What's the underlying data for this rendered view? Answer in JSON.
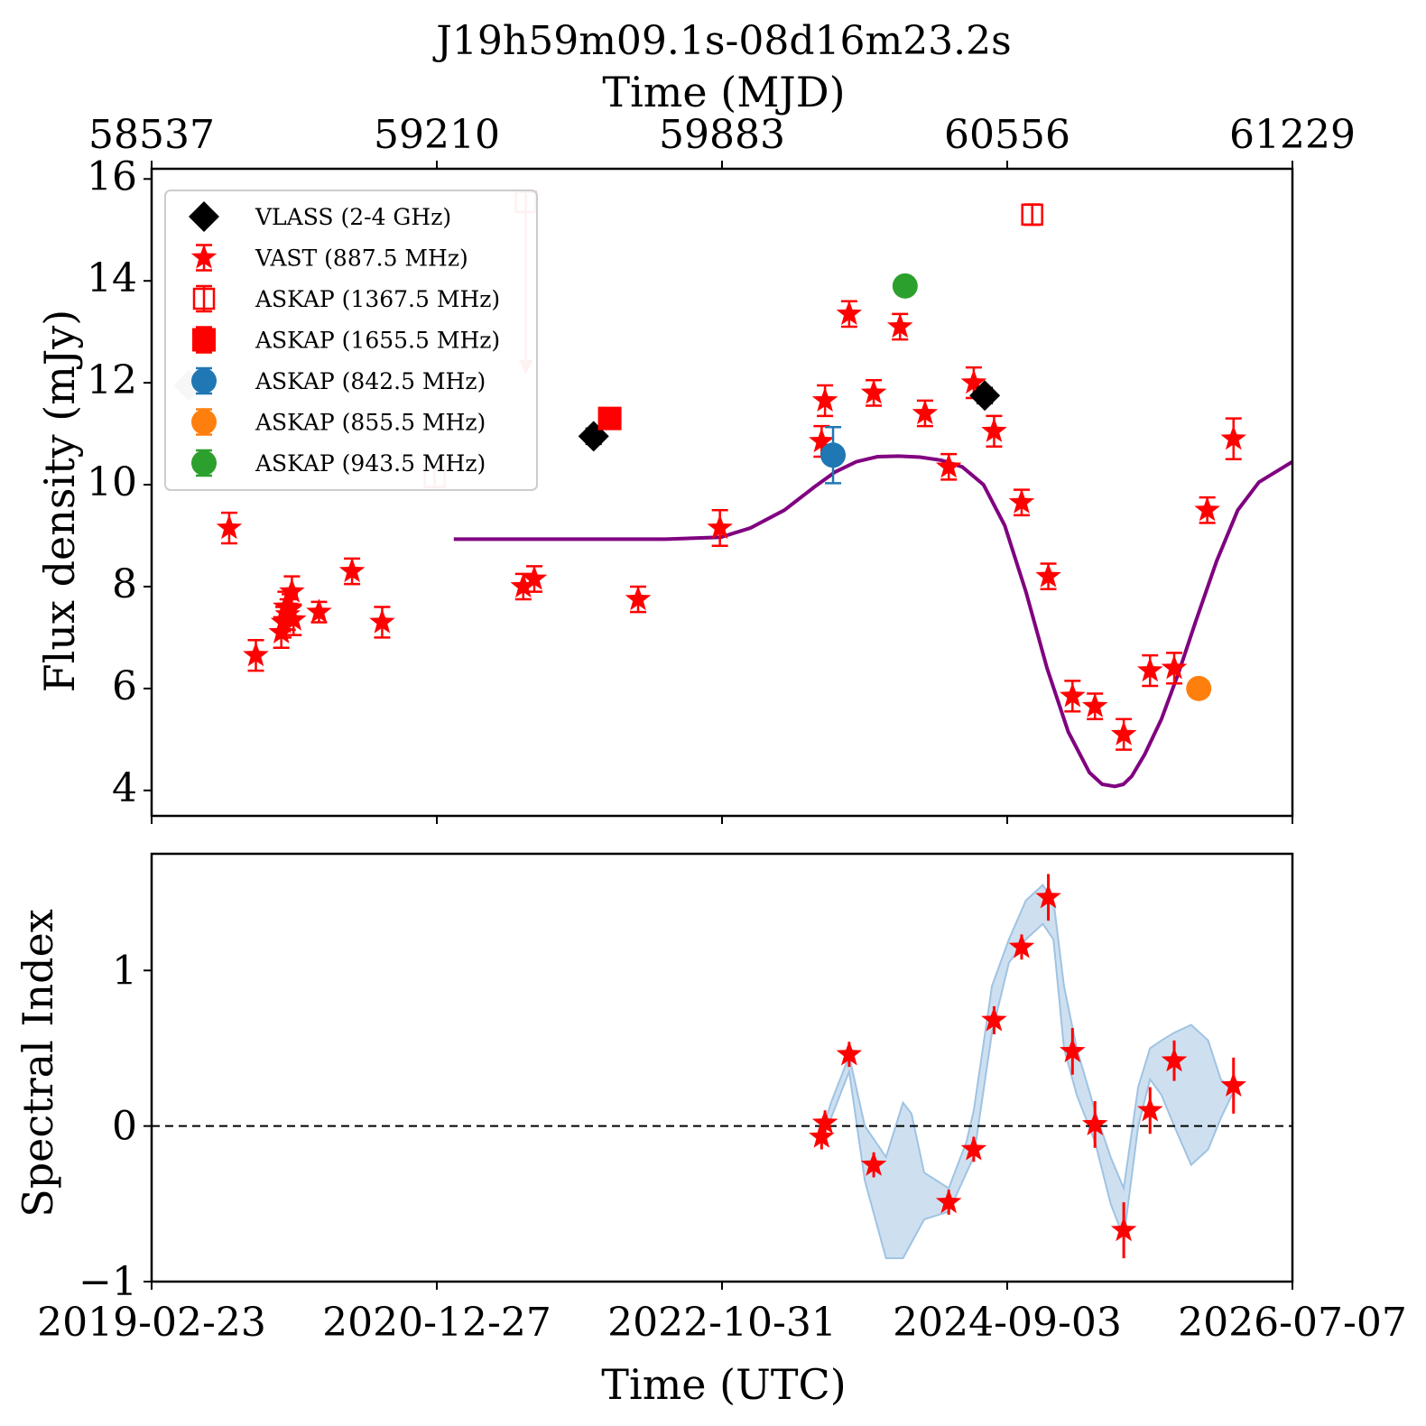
{
  "title": "J19h59m09.1s-08d16m23.2s",
  "colors": {
    "vast": "#ff0000",
    "vlass": "#000000",
    "vlass_faded": "#c8c8c8",
    "askap_842": "#1f77b4",
    "askap_855": "#ff7f0e",
    "askap_943": "#2ca02c",
    "model": "#800080",
    "band_fill": "#b9d3ea"
  },
  "chart_data": [
    {
      "type": "scatter",
      "name": "top-panel",
      "x_top_label": "Time (MJD)",
      "ylabel": "Flux density (mJy)",
      "xlim": [
        58537,
        61229
      ],
      "ylim": [
        3.5,
        16.2
      ],
      "x_top_ticks": [
        "58537",
        "59210",
        "59883",
        "60556",
        "61229"
      ],
      "y_ticks": [
        "4",
        "6",
        "8",
        "10",
        "12",
        "14",
        "16"
      ],
      "y_tick_values": [
        4,
        6,
        8,
        10,
        12,
        14,
        16
      ],
      "legend": [
        {
          "label": "VLASS (2-4 GHz)",
          "marker": "diamond",
          "color": "#000000"
        },
        {
          "label": "VAST (887.5 MHz)",
          "marker": "star",
          "color": "#ff0000"
        },
        {
          "label": "ASKAP (1367.5 MHz)",
          "marker": "open-square",
          "color": "#ff0000"
        },
        {
          "label": "ASKAP (1655.5 MHz)",
          "marker": "square",
          "color": "#ff0000"
        },
        {
          "label": "ASKAP (842.5 MHz)",
          "marker": "circle",
          "color": "#1f77b4"
        },
        {
          "label": "ASKAP (855.5 MHz)",
          "marker": "circle",
          "color": "#ff7f0e"
        },
        {
          "label": "ASKAP (943.5 MHz)",
          "marker": "circle",
          "color": "#2ca02c"
        }
      ],
      "legend_position": "upper-left",
      "series": [
        {
          "name": "VAST (887.5 MHz)",
          "marker": "star",
          "color": "#ff0000",
          "points": [
            [
              58720,
              9.15,
              0.3
            ],
            [
              58783,
              6.65,
              0.3
            ],
            [
              58843,
              7.1,
              0.3
            ],
            [
              58848,
              7.3,
              0.3
            ],
            [
              58853,
              7.6,
              0.3
            ],
            [
              58858,
              7.45,
              0.3
            ],
            [
              58863,
              7.55,
              0.3
            ],
            [
              58868,
              7.9,
              0.3
            ],
            [
              58872,
              7.35,
              0.3
            ],
            [
              58932,
              7.5,
              0.2
            ],
            [
              59010,
              8.3,
              0.25
            ],
            [
              59081,
              7.3,
              0.3
            ],
            [
              59414,
              8.0,
              0.25
            ],
            [
              59440,
              8.15,
              0.25
            ],
            [
              59685,
              7.75,
              0.25
            ],
            [
              59878,
              9.15,
              0.35
            ],
            [
              60118,
              10.85,
              0.3
            ],
            [
              60126,
              11.65,
              0.3
            ],
            [
              60183,
              13.35,
              0.25
            ],
            [
              60241,
              11.8,
              0.25
            ],
            [
              60303,
              13.1,
              0.25
            ],
            [
              60362,
              11.4,
              0.25
            ],
            [
              60418,
              10.35,
              0.25
            ],
            [
              60477,
              12.0,
              0.3
            ],
            [
              60525,
              11.05,
              0.3
            ],
            [
              60590,
              9.65,
              0.25
            ],
            [
              60653,
              8.2,
              0.25
            ],
            [
              60710,
              5.85,
              0.3
            ],
            [
              60763,
              5.65,
              0.25
            ],
            [
              60831,
              5.1,
              0.3
            ],
            [
              60893,
              6.35,
              0.3
            ],
            [
              60950,
              6.4,
              0.3
            ],
            [
              61028,
              9.5,
              0.25
            ],
            [
              61090,
              10.9,
              0.4
            ]
          ]
        },
        {
          "name": "VLASS (2-4 GHz)",
          "marker": "diamond",
          "color": "#000000",
          "points": [
            [
              59580,
              10.95,
              0.15
            ],
            [
              60503,
              11.75,
              0.15
            ]
          ]
        },
        {
          "name": "VLASS (2-4 GHz) faded",
          "marker": "diamond",
          "color": "#c8c8c8",
          "points": [
            [
              58625,
              11.95,
              0.15
            ]
          ]
        },
        {
          "name": "ASKAP (1367.5 MHz)",
          "marker": "open-square",
          "color": "#ff0000",
          "points": [
            [
              60615,
              15.3,
              0.2
            ]
          ]
        },
        {
          "name": "ASKAP (1367.5 MHz) faded",
          "marker": "open-square",
          "color": "#f7a8a8",
          "points": [
            [
              59205,
              10.15,
              0.2
            ],
            [
              59420,
              15.55,
              0.2
            ]
          ]
        },
        {
          "name": "ASKAP (1655.5 MHz)",
          "marker": "square",
          "color": "#ff0000",
          "points": [
            [
              59618,
              11.3,
              0.15
            ]
          ]
        },
        {
          "name": "ASKAP (842.5 MHz)",
          "marker": "circle",
          "color": "#1f77b4",
          "points": [
            [
              60145,
              10.58,
              0.55
            ]
          ]
        },
        {
          "name": "ASKAP (855.5 MHz)",
          "marker": "circle",
          "color": "#ff7f0e",
          "points": [
            [
              61008,
              6.0,
              0.12
            ]
          ]
        },
        {
          "name": "ASKAP (943.5 MHz)",
          "marker": "circle",
          "color": "#2ca02c",
          "points": [
            [
              60315,
              13.9,
              0.15
            ]
          ]
        }
      ],
      "upper_limit": {
        "x": 59420,
        "y_from": 15.55,
        "y_to": 12.2,
        "color": "#f7a8a8"
      },
      "model_curve": {
        "color": "#800080",
        "x": [
          59250,
          59500,
          59750,
          59880,
          59950,
          60030,
          60100,
          60150,
          60200,
          60250,
          60300,
          60350,
          60400,
          60450,
          60500,
          60550,
          60600,
          60650,
          60700,
          60750,
          60780,
          60810,
          60830,
          60850,
          60880,
          60920,
          60960,
          61000,
          61050,
          61100,
          61150,
          61229
        ],
        "y": [
          8.93,
          8.93,
          8.93,
          8.97,
          9.15,
          9.5,
          9.95,
          10.25,
          10.45,
          10.55,
          10.56,
          10.54,
          10.48,
          10.35,
          10.0,
          9.2,
          7.9,
          6.4,
          5.15,
          4.35,
          4.12,
          4.08,
          4.12,
          4.28,
          4.7,
          5.4,
          6.3,
          7.3,
          8.5,
          9.5,
          10.05,
          10.45
        ]
      }
    },
    {
      "type": "scatter",
      "name": "bottom-panel",
      "xlabel": "Time (UTC)",
      "ylabel": "Spectral Index",
      "xlim": [
        58537,
        61229
      ],
      "ylim": [
        -1.0,
        1.75
      ],
      "x_ticks": [
        "2019-02-23",
        "2020-12-27",
        "2022-10-31",
        "2024-09-03",
        "2026-07-07"
      ],
      "y_ticks": [
        "−1",
        "0",
        "1"
      ],
      "y_tick_values": [
        -1,
        0,
        1
      ],
      "zero_line": 0,
      "points": [
        [
          60118,
          -0.07,
          0.08
        ],
        [
          60126,
          0.02,
          0.08
        ],
        [
          60183,
          0.46,
          0.08
        ],
        [
          60241,
          -0.25,
          0.08
        ],
        [
          60418,
          -0.49,
          0.08
        ],
        [
          60477,
          -0.15,
          0.08
        ],
        [
          60525,
          0.68,
          0.09
        ],
        [
          60590,
          1.15,
          0.08
        ],
        [
          60653,
          1.47,
          0.15
        ],
        [
          60710,
          0.48,
          0.15
        ],
        [
          60763,
          0.01,
          0.15
        ],
        [
          60831,
          -0.67,
          0.18
        ],
        [
          60893,
          0.1,
          0.15
        ],
        [
          60950,
          0.42,
          0.13
        ],
        [
          61090,
          0.26,
          0.18
        ]
      ],
      "band": {
        "x": [
          60118,
          60140,
          60183,
          60220,
          60270,
          60310,
          60330,
          60360,
          60418,
          60460,
          60477,
          60520,
          60560,
          60600,
          60640,
          60665,
          60690,
          60720,
          60763,
          60800,
          60831,
          60865,
          60893,
          60920,
          60950,
          60990,
          61030,
          61060,
          61090
        ],
        "upper": [
          -0.05,
          0.15,
          0.45,
          0.0,
          -0.2,
          0.15,
          0.08,
          -0.3,
          -0.4,
          -0.1,
          0.1,
          0.9,
          1.2,
          1.45,
          1.55,
          1.45,
          0.9,
          0.5,
          0.1,
          -0.2,
          -0.4,
          0.25,
          0.5,
          0.55,
          0.6,
          0.65,
          0.55,
          0.3,
          0.22
        ],
        "lower": [
          -0.1,
          0.05,
          0.35,
          -0.35,
          -0.85,
          -0.85,
          -0.75,
          -0.6,
          -0.55,
          -0.3,
          -0.2,
          0.6,
          1.05,
          1.2,
          1.3,
          1.2,
          0.5,
          0.2,
          -0.1,
          -0.5,
          -0.72,
          0.0,
          0.3,
          0.2,
          0.0,
          -0.25,
          -0.15,
          0.05,
          0.22
        ]
      }
    }
  ]
}
